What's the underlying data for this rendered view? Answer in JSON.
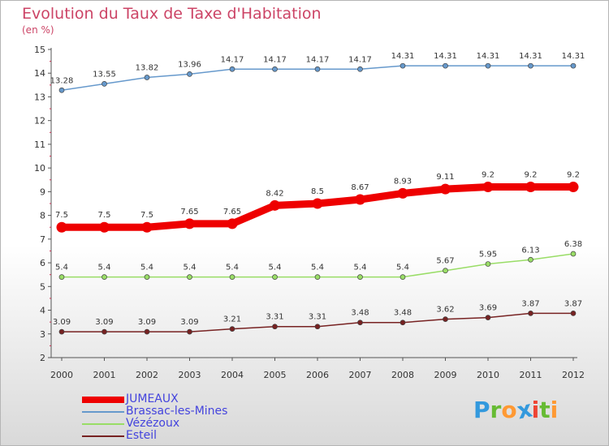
{
  "chart_data": {
    "type": "line",
    "title": "Evolution du Taux de Taxe d'Habitation",
    "ylabel": "(en %)",
    "xlabel": "",
    "x": [
      "2000",
      "2001",
      "2002",
      "2003",
      "2004",
      "2005",
      "2006",
      "2007",
      "2008",
      "2009",
      "2010",
      "2011",
      "2012"
    ],
    "ylim": [
      2,
      15
    ],
    "yticks": [
      "2",
      "3",
      "4",
      "5",
      "6",
      "7",
      "8",
      "9",
      "10",
      "11",
      "12",
      "13",
      "14",
      "15"
    ],
    "grid": false,
    "legend_position": "bottom-left",
    "series": [
      {
        "name": "JUMEAUX",
        "color": "#ee0000",
        "values": [
          7.5,
          7.5,
          7.5,
          7.65,
          7.65,
          8.42,
          8.5,
          8.67,
          8.93,
          9.11,
          9.2,
          9.2,
          9.2
        ],
        "labels": [
          "7.5",
          "7.5",
          "7.5",
          "7.65",
          "7.65",
          "8.42",
          "8.5",
          "8.67",
          "8.93",
          "9.11",
          "9.2",
          "9.2",
          "9.2"
        ]
      },
      {
        "name": "Brassac-les-Mines",
        "color": "#6699cc",
        "values": [
          13.28,
          13.55,
          13.82,
          13.96,
          14.17,
          14.17,
          14.17,
          14.17,
          14.31,
          14.31,
          14.31,
          14.31,
          14.31
        ],
        "labels": [
          "13.28",
          "13.55",
          "13.82",
          "13.96",
          "14.17",
          "14.17",
          "14.17",
          "14.17",
          "14.31",
          "14.31",
          "14.31",
          "14.31",
          "14.31"
        ]
      },
      {
        "name": "Vézézoux",
        "color": "#99dd66",
        "values": [
          5.4,
          5.4,
          5.4,
          5.4,
          5.4,
          5.4,
          5.4,
          5.4,
          5.4,
          5.67,
          5.95,
          6.13,
          6.38
        ],
        "labels": [
          "5.4",
          "5.4",
          "5.4",
          "5.4",
          "5.4",
          "5.4",
          "5.4",
          "5.4",
          "5.4",
          "5.67",
          "5.95",
          "6.13",
          "6.38"
        ]
      },
      {
        "name": "Esteil",
        "color": "#772222",
        "values": [
          3.09,
          3.09,
          3.09,
          3.09,
          3.21,
          3.31,
          3.31,
          3.48,
          3.48,
          3.62,
          3.69,
          3.87,
          3.87
        ],
        "labels": [
          "3.09",
          "3.09",
          "3.09",
          "3.09",
          "3.21",
          "3.31",
          "3.31",
          "3.48",
          "3.48",
          "3.62",
          "3.69",
          "3.87",
          "3.87"
        ]
      }
    ]
  },
  "logo": {
    "letters": [
      "P",
      "r",
      "o",
      "x",
      "i",
      "t",
      "i"
    ],
    "colors": [
      "#3399dd",
      "#66bb33",
      "#ff9933",
      "#3399dd",
      "#ee4433",
      "#66bb33",
      "#ff9933"
    ]
  }
}
